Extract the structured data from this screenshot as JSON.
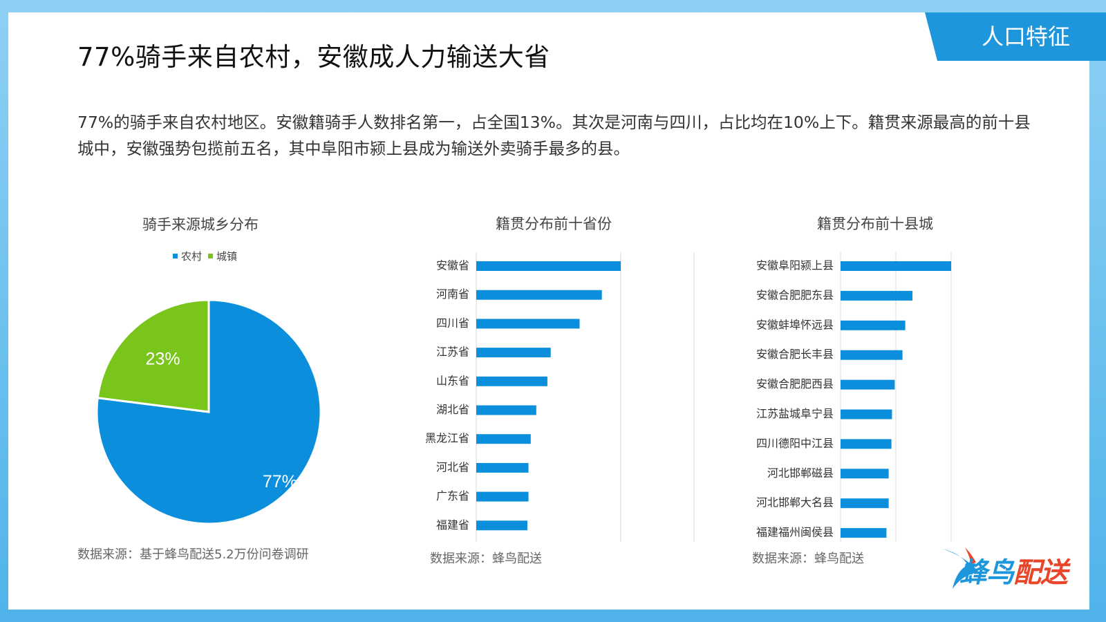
{
  "header": {
    "title": "77%骑手来自农村，安徽成人力输送大省",
    "tag": "人口特征"
  },
  "description": "77%的骑手来自农村地区。安徽籍骑手人数排名第一，占全国13%。其次是河南与四川，占比均在10%上下。籍贯来源最高的前十县城中，安徽强势包揽前五名，其中阜阳市颍上县成为输送外卖骑手最多的县。",
  "colors": {
    "brand_blue": "#1e96dc",
    "pie_rural": "#0b8fdc",
    "pie_town": "#7ac51c",
    "bar": "#0b8fdc",
    "logo_red": "#e8452a"
  },
  "logo": {
    "text_a": "蜂鸟",
    "text_b": "配送",
    "icon": "hummingbird-icon"
  },
  "chart_data": [
    {
      "type": "pie",
      "title": "骑手来源城乡分布",
      "legend": [
        "农村",
        "城镇"
      ],
      "legend_position": "top",
      "slices": [
        {
          "name": "农村",
          "value": 77,
          "label": "77%"
        },
        {
          "name": "城镇",
          "value": 23,
          "label": "23%"
        }
      ],
      "source": "数据来源：基于蜂鸟配送5.2万份问卷调研"
    },
    {
      "type": "bar",
      "orientation": "horizontal",
      "title": "籍贯分布前十省份",
      "categories": [
        "安徽省",
        "河南省",
        "四川省",
        "江苏省",
        "山东省",
        "湖北省",
        "黑龙江省",
        "河北省",
        "广东省",
        "福建省"
      ],
      "values": [
        13.0,
        11.3,
        9.3,
        6.7,
        6.4,
        5.4,
        4.9,
        4.7,
        4.7,
        4.6
      ],
      "grid": true,
      "source": "数据来源：蜂鸟配送"
    },
    {
      "type": "bar",
      "orientation": "horizontal",
      "title": "籍贯分布前十县城",
      "categories": [
        "安徽阜阳颍上县",
        "安徽合肥肥东县",
        "安徽蚌埠怀远县",
        "安徽合肥长丰县",
        "安徽合肥肥西县",
        "江苏盐城阜宁县",
        "四川德阳中江县",
        "河北邯郸磁县",
        "河北邯郸大名县",
        "福建福州闽侯县"
      ],
      "values": [
        2.0,
        1.3,
        1.17,
        1.12,
        0.98,
        0.93,
        0.92,
        0.87,
        0.87,
        0.83
      ],
      "grid": true,
      "source": "数据来源：蜂鸟配送"
    }
  ]
}
